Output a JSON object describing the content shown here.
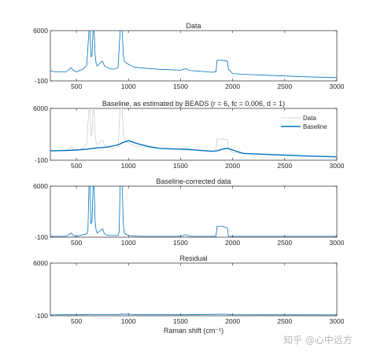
{
  "watermark": "知乎 @心中远方",
  "colors": {
    "data": "#0072bd",
    "raw": "#c8c8c8",
    "axis": "#262626"
  },
  "chart_data": [
    {
      "type": "line",
      "title": "Data",
      "xlabel": "",
      "ylabel": "",
      "xlim": [
        250,
        3000
      ],
      "ylim": [
        -100,
        6000
      ],
      "xticks": [
        500,
        1000,
        1500,
        2000,
        2500,
        3000
      ],
      "yticks": [
        -100,
        6000
      ],
      "legend": null,
      "series": [
        {
          "style": "data",
          "x": [
            250,
            300,
            400,
            450,
            470,
            500,
            560,
            600,
            620,
            630,
            640,
            650,
            660,
            670,
            680,
            690,
            700,
            730,
            750,
            770,
            800,
            850,
            900,
            920,
            930,
            940,
            950,
            960,
            980,
            1000,
            1050,
            1100,
            1200,
            1300,
            1400,
            1500,
            1550,
            1580,
            1600,
            1700,
            1800,
            1840,
            1850,
            1900,
            1950,
            1960,
            2000,
            2100,
            2200,
            2300,
            2500,
            2700,
            3000
          ],
          "y": [
            1100,
            1000,
            1000,
            1500,
            1200,
            1000,
            1300,
            1800,
            6000,
            6000,
            2800,
            3000,
            6000,
            6000,
            3000,
            2000,
            1700,
            2100,
            2300,
            1700,
            1500,
            1300,
            1500,
            6000,
            6000,
            6000,
            3000,
            2300,
            2100,
            1900,
            1600,
            1500,
            1400,
            1300,
            1250,
            1200,
            1400,
            1200,
            1150,
            1050,
            950,
            1000,
            2400,
            2400,
            2300,
            1300,
            800,
            700,
            650,
            600,
            500,
            400,
            300
          ]
        }
      ]
    },
    {
      "type": "line",
      "title": "Baseline, as estimated by BEADS (r = 6, fc = 0.006, d = 1)",
      "xlabel": "",
      "ylabel": "",
      "xlim": [
        250,
        3000
      ],
      "ylim": [
        -100,
        6000
      ],
      "xticks": [
        500,
        1000,
        1500,
        2000,
        2500,
        3000
      ],
      "yticks": [
        -100,
        6000
      ],
      "legend": "top-right",
      "series": [
        {
          "name": "Data",
          "style": "raw",
          "x": [
            250,
            300,
            400,
            450,
            470,
            500,
            560,
            600,
            620,
            630,
            640,
            650,
            660,
            670,
            680,
            690,
            700,
            730,
            750,
            770,
            800,
            850,
            900,
            920,
            930,
            940,
            950,
            960,
            980,
            1000,
            1050,
            1100,
            1200,
            1300,
            1400,
            1500,
            1550,
            1580,
            1600,
            1700,
            1800,
            1840,
            1850,
            1900,
            1950,
            1960,
            2000,
            2100,
            2200,
            2300,
            2500,
            2700,
            3000
          ],
          "y": [
            1100,
            1000,
            1000,
            1500,
            1200,
            1000,
            1300,
            1800,
            6000,
            6000,
            2800,
            3000,
            6000,
            6000,
            3000,
            2000,
            1700,
            2100,
            2300,
            1700,
            1500,
            1300,
            1500,
            6000,
            6000,
            6000,
            3000,
            2300,
            2100,
            1900,
            1600,
            1500,
            1400,
            1300,
            1250,
            1200,
            1400,
            1200,
            1150,
            1050,
            950,
            1000,
            2400,
            2400,
            2300,
            1300,
            800,
            700,
            650,
            600,
            500,
            400,
            300
          ]
        },
        {
          "name": "Baseline",
          "style": "baseline",
          "x": [
            250,
            400,
            500,
            600,
            700,
            800,
            900,
            950,
            1000,
            1050,
            1100,
            1200,
            1300,
            1400,
            1500,
            1600,
            1700,
            1800,
            1850,
            1900,
            1950,
            2000,
            2100,
            2300,
            2500,
            2700,
            3000
          ],
          "y": [
            1000,
            1050,
            1100,
            1200,
            1350,
            1450,
            1700,
            2000,
            2200,
            2000,
            1800,
            1500,
            1300,
            1250,
            1200,
            1150,
            1050,
            950,
            1000,
            1200,
            1300,
            1100,
            700,
            600,
            500,
            400,
            300
          ]
        }
      ]
    },
    {
      "type": "line",
      "title": "Baseline-corrected data",
      "xlabel": "",
      "ylabel": "",
      "xlim": [
        250,
        3000
      ],
      "ylim": [
        -100,
        6000
      ],
      "xticks": [
        500,
        1000,
        1500,
        2000,
        2500,
        3000
      ],
      "yticks": [
        -100,
        6000
      ],
      "legend": null,
      "series": [
        {
          "style": "data",
          "x": [
            250,
            400,
            450,
            470,
            500,
            600,
            610,
            620,
            630,
            640,
            650,
            660,
            670,
            680,
            690,
            700,
            730,
            750,
            770,
            800,
            900,
            910,
            920,
            930,
            940,
            950,
            960,
            980,
            1000,
            1100,
            1200,
            1300,
            1500,
            1550,
            1580,
            1600,
            1800,
            1840,
            1850,
            1900,
            1950,
            1960,
            2000,
            2100,
            2500,
            3000
          ],
          "y": [
            0,
            0,
            400,
            100,
            0,
            300,
            600,
            6000,
            6000,
            1500,
            1800,
            6000,
            6000,
            1800,
            700,
            400,
            700,
            900,
            300,
            100,
            100,
            500,
            6000,
            6000,
            6000,
            1500,
            400,
            200,
            100,
            0,
            0,
            0,
            0,
            200,
            50,
            0,
            0,
            0,
            1200,
            1200,
            1000,
            0,
            0,
            0,
            0,
            0
          ]
        }
      ]
    },
    {
      "type": "line",
      "title": "Residual",
      "xlabel": "Raman shift (cm⁻¹)",
      "ylabel": "",
      "xlim": [
        250,
        3000
      ],
      "ylim": [
        -100,
        6000
      ],
      "xticks": [
        500,
        1000,
        1500,
        2000,
        2500,
        3000
      ],
      "yticks": [
        -100,
        6000
      ],
      "legend": null,
      "series": [
        {
          "style": "data",
          "x": [
            250,
            400,
            600,
            630,
            650,
            700,
            900,
            930,
            980,
            1000,
            1020,
            1100,
            1500,
            1850,
            1900,
            1950,
            2000,
            2500,
            3000
          ],
          "y": [
            0,
            20,
            20,
            80,
            30,
            40,
            30,
            100,
            60,
            120,
            50,
            20,
            20,
            60,
            80,
            60,
            20,
            10,
            0
          ]
        }
      ]
    }
  ]
}
